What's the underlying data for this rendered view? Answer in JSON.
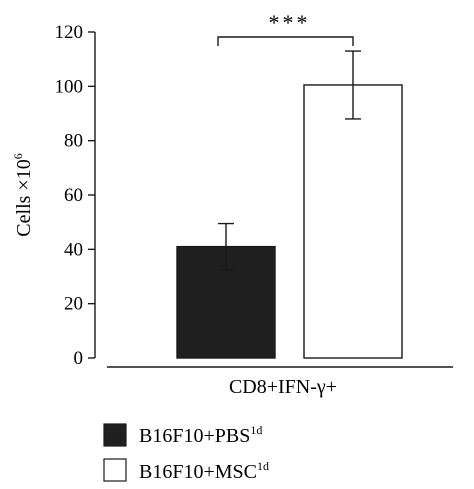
{
  "chart_data": {
    "type": "bar",
    "categories": [
      "CD8+IFN-γ+"
    ],
    "series": [
      {
        "name": "B16F10+PBS",
        "name_sup": "1d",
        "values": [
          41
        ],
        "error": [
          8.5
        ],
        "color": "#1f1f1f"
      },
      {
        "name": "B16F10+MSC",
        "name_sup": "1d",
        "values": [
          100.5
        ],
        "error": [
          12.5
        ],
        "color": "#ffffff"
      }
    ],
    "ylabel": "Cells ×10",
    "ylabel_sup": "6",
    "xlabel": "CD8+IFN-γ+",
    "ylim": [
      0,
      120
    ],
    "yticks": [
      0,
      20,
      40,
      60,
      80,
      100,
      120
    ],
    "significance": "***",
    "grid": false,
    "legend_position": "bottom-left"
  }
}
